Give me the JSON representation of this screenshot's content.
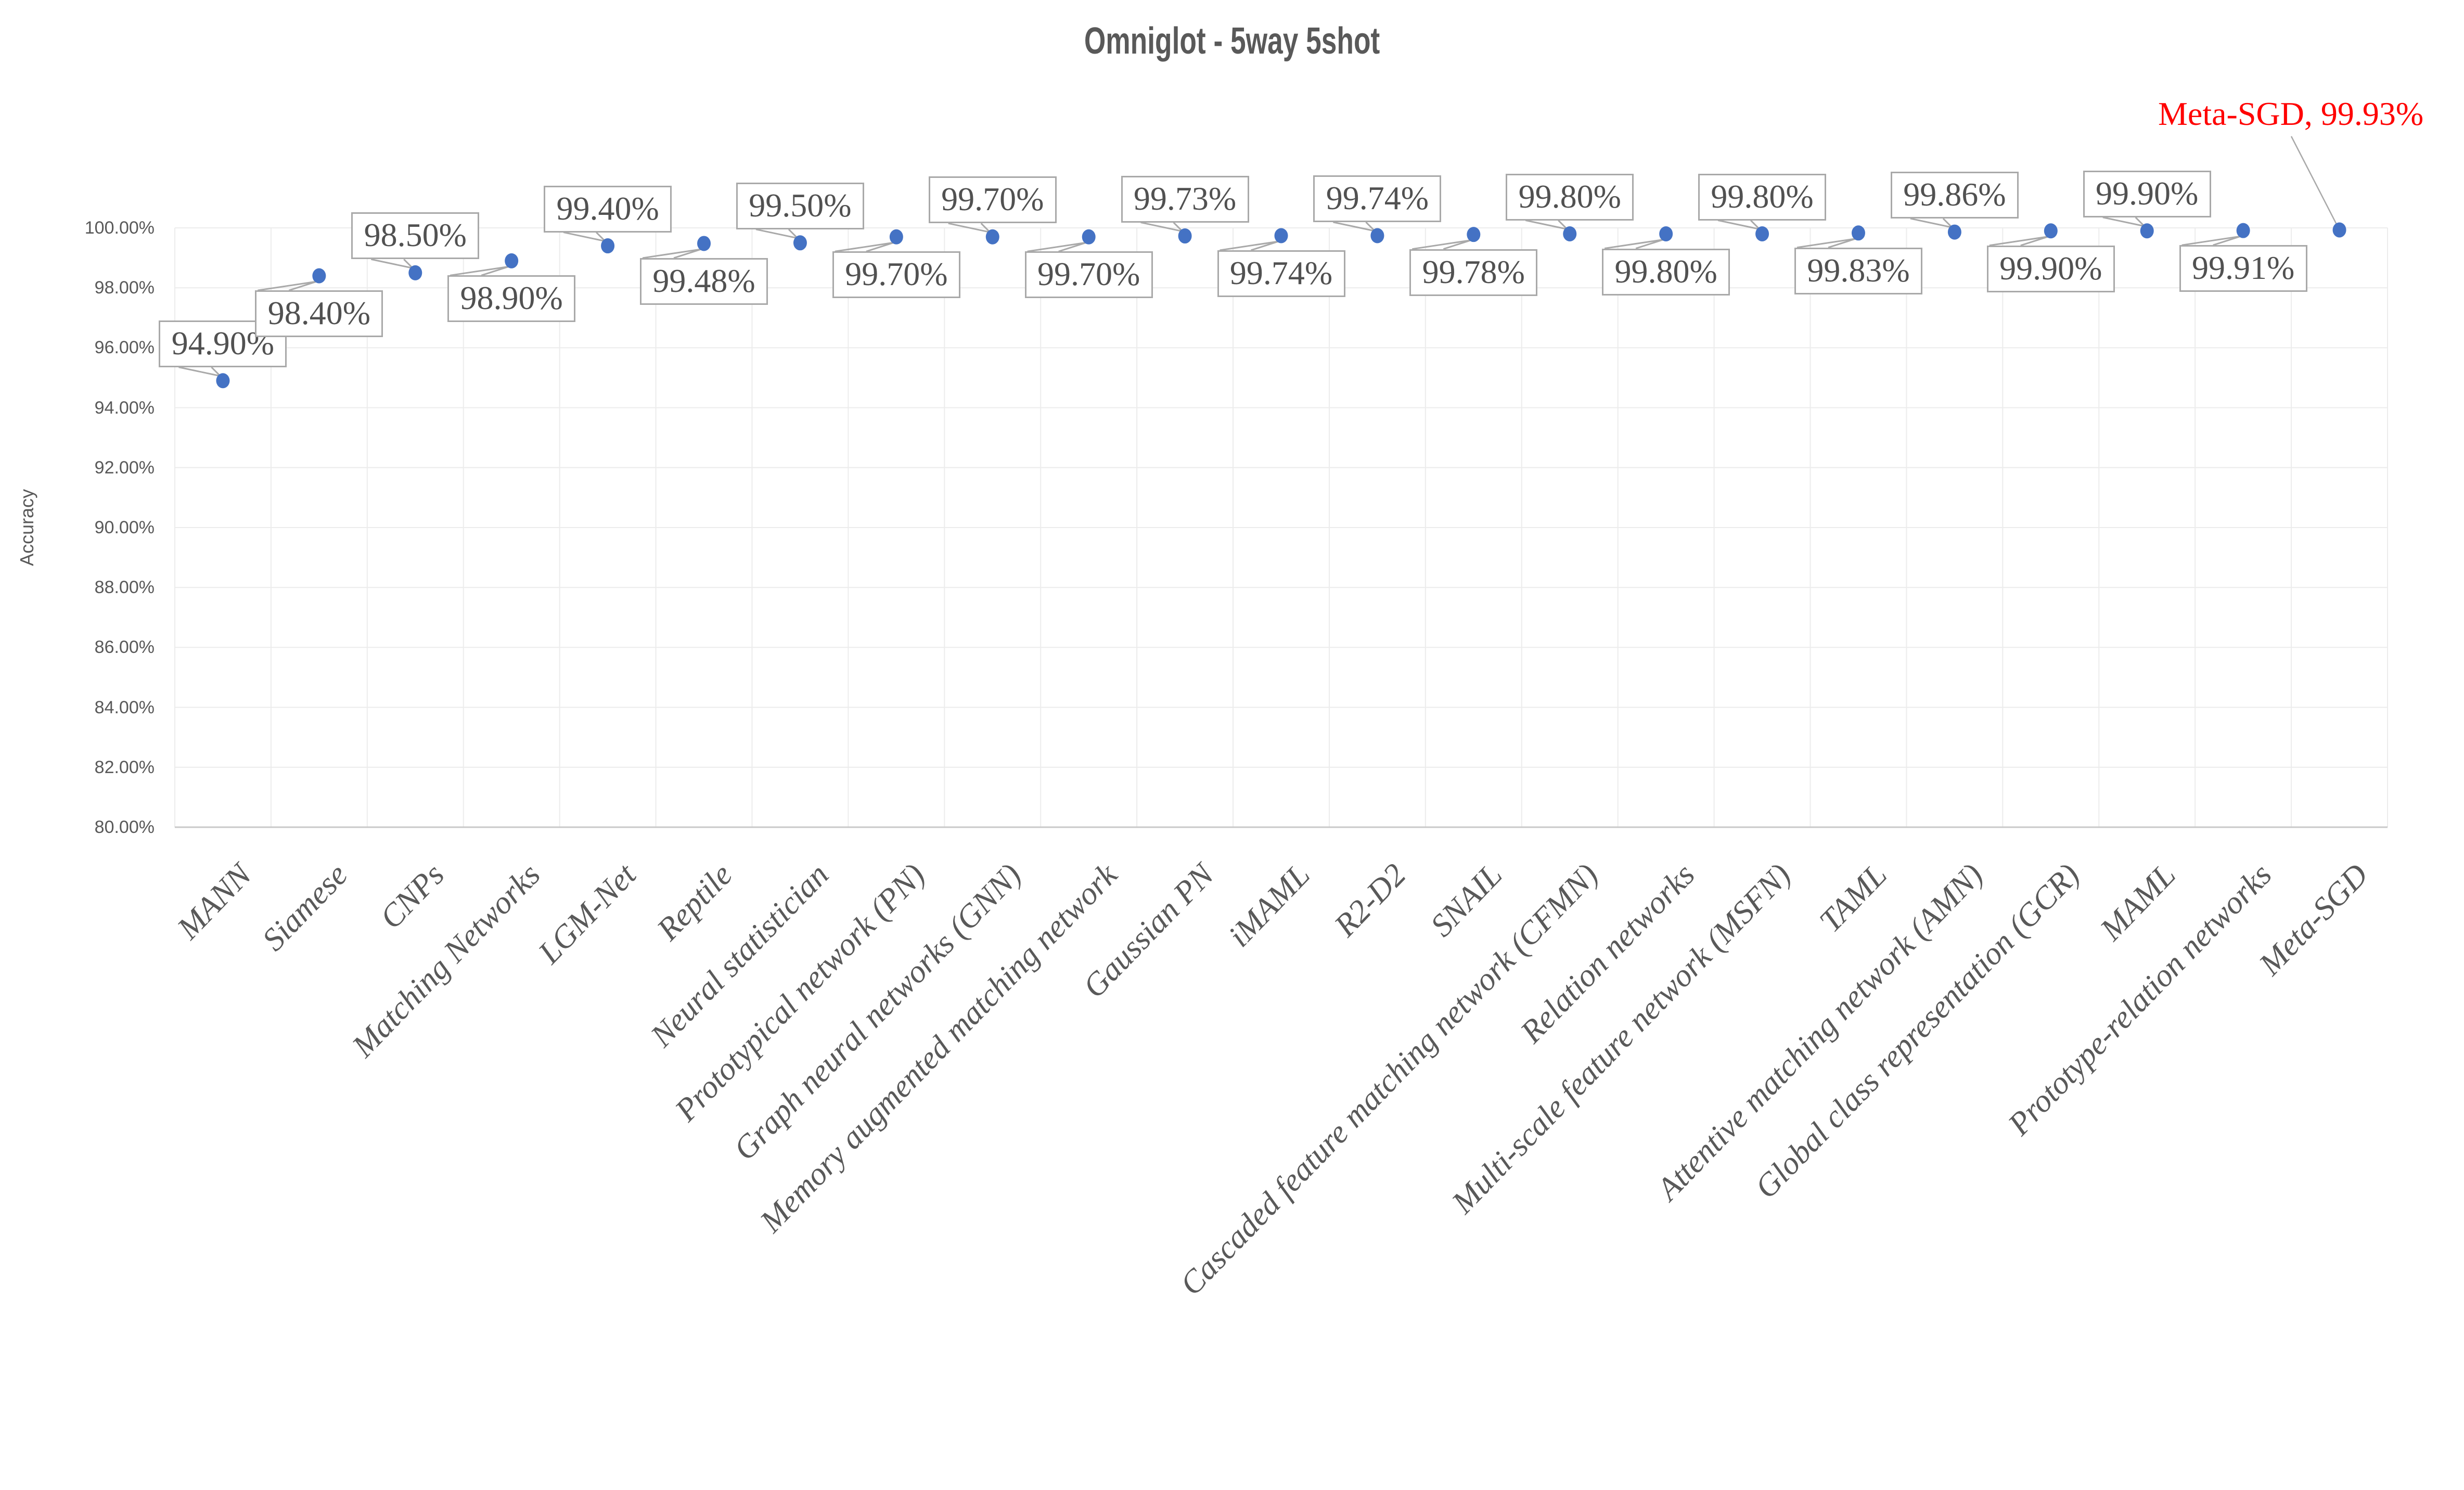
{
  "chart_data": {
    "type": "scatter",
    "title": "Omniglot - 5way 5shot",
    "ylabel": "Accuracy",
    "xlabel": "",
    "ylim": [
      0.8,
      1.0
    ],
    "ytick_step": 0.02,
    "grid": true,
    "legend": "none",
    "yticks": [
      "100.00%",
      "98.00%",
      "96.00%",
      "94.00%",
      "92.00%",
      "90.00%",
      "88.00%",
      "86.00%",
      "84.00%",
      "82.00%",
      "80.00%"
    ],
    "categories": [
      "MANN",
      "Siamese",
      "CNPs",
      "Matching Networks",
      "LGM-Net",
      "Reptile",
      "Neural statistician",
      "Prototypical network (PN)",
      "Graph neural networks (GNN)",
      "Memory augmented matching network",
      "Gaussian PN",
      "iMAML",
      "R2-D2",
      "SNAIL",
      "Cascaded feature matching network (CFMN)",
      "Relation networks",
      "Multi-scale feature network (MSFN)",
      "TAML",
      "Attentive matching network (AMN)",
      "Global class representation (GCR)",
      "MAML",
      "Prototype-relation networks",
      "Meta-SGD"
    ],
    "values": [
      94.9,
      98.4,
      98.5,
      98.9,
      99.4,
      99.48,
      99.5,
      99.7,
      99.7,
      99.7,
      99.73,
      99.74,
      99.74,
      99.78,
      99.8,
      99.8,
      99.8,
      99.83,
      99.86,
      99.9,
      99.9,
      99.91,
      99.93
    ],
    "data_labels": [
      "94.90%",
      "98.40%",
      "98.50%",
      "98.90%",
      "99.40%",
      "99.48%",
      "99.50%",
      "99.70%",
      "99.70%",
      "99.70%",
      "99.73%",
      "99.74%",
      "99.74%",
      "99.78%",
      "99.80%",
      "99.80%",
      "99.80%",
      "99.83%",
      "99.86%",
      "99.90%",
      "99.90%",
      "99.91%",
      "99.93%"
    ],
    "label_placement": [
      "above",
      "below",
      "above",
      "below",
      "above",
      "below",
      "above",
      "below",
      "above",
      "below",
      "above",
      "below",
      "above",
      "below",
      "above",
      "below",
      "above",
      "below",
      "above",
      "below",
      "above",
      "below",
      "red-callout"
    ],
    "annotation": {
      "text": "Meta-SGD, 99.93%",
      "series": "Meta-SGD",
      "value": "99.93%",
      "color": "#FF0000"
    },
    "colors": {
      "marker": "#4472C4",
      "title_text": "#595959",
      "axis_text": "#595959",
      "data_label_text": "#515151",
      "callout_border": "#A9A9A9",
      "gridline": "#ECECEC",
      "axis_line": "#C9C9C9",
      "annotation_red": "#FF0000"
    }
  }
}
